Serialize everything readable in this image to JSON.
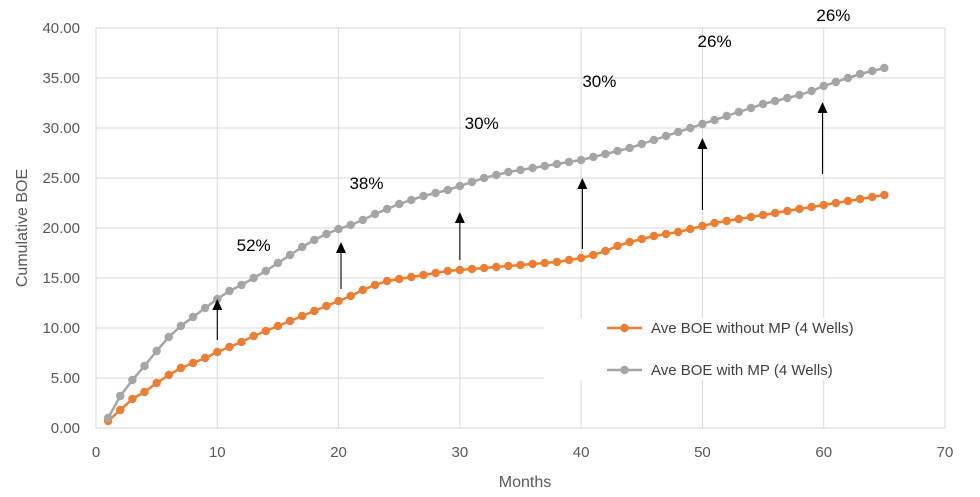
{
  "chart_data": {
    "type": "line",
    "title": "",
    "xlabel": "Months",
    "ylabel": "Cumulative BOE",
    "xlim": [
      0,
      70
    ],
    "ylim": [
      0,
      40
    ],
    "x_ticks": [
      0,
      10,
      20,
      30,
      40,
      50,
      60,
      70
    ],
    "y_ticks": [
      0,
      5,
      10,
      15,
      20,
      25,
      30,
      35,
      40
    ],
    "y_tick_labels": [
      "0.00",
      "5.00",
      "10.00",
      "15.00",
      "20.00",
      "25.00",
      "30.00",
      "35.00",
      "40.00"
    ],
    "grid": "vertical-and-horizontal",
    "legend_position": "bottom-right",
    "series": [
      {
        "name": "Ave BOE without MP (4 Wells)",
        "color": "#ED7D31",
        "x": [
          1,
          2,
          3,
          4,
          5,
          6,
          7,
          8,
          9,
          10,
          11,
          12,
          13,
          14,
          15,
          16,
          17,
          18,
          19,
          20,
          21,
          22,
          23,
          24,
          25,
          26,
          27,
          28,
          29,
          30,
          31,
          32,
          33,
          34,
          35,
          36,
          37,
          38,
          39,
          40,
          41,
          42,
          43,
          44,
          45,
          46,
          47,
          48,
          49,
          50,
          51,
          52,
          53,
          54,
          55,
          56,
          57,
          58,
          59,
          60,
          61,
          62,
          63,
          64,
          65
        ],
        "y": [
          0.7,
          1.8,
          2.9,
          3.6,
          4.5,
          5.3,
          6.0,
          6.5,
          7.0,
          7.6,
          8.1,
          8.6,
          9.2,
          9.7,
          10.2,
          10.7,
          11.2,
          11.7,
          12.2,
          12.7,
          13.2,
          13.8,
          14.3,
          14.7,
          14.9,
          15.1,
          15.3,
          15.5,
          15.7,
          15.8,
          15.9,
          16.0,
          16.1,
          16.2,
          16.3,
          16.4,
          16.5,
          16.6,
          16.8,
          17.0,
          17.3,
          17.7,
          18.2,
          18.6,
          18.9,
          19.2,
          19.4,
          19.6,
          19.9,
          20.2,
          20.5,
          20.7,
          20.9,
          21.1,
          21.3,
          21.5,
          21.7,
          21.9,
          22.1,
          22.3,
          22.5,
          22.7,
          22.9,
          23.1,
          23.3
        ]
      },
      {
        "name": "Ave BOE with MP (4 Wells)",
        "color": "#A5A5A5",
        "x": [
          1,
          2,
          3,
          4,
          5,
          6,
          7,
          8,
          9,
          10,
          11,
          12,
          13,
          14,
          15,
          16,
          17,
          18,
          19,
          20,
          21,
          22,
          23,
          24,
          25,
          26,
          27,
          28,
          29,
          30,
          31,
          32,
          33,
          34,
          35,
          36,
          37,
          38,
          39,
          40,
          41,
          42,
          43,
          44,
          45,
          46,
          47,
          48,
          49,
          50,
          51,
          52,
          53,
          54,
          55,
          56,
          57,
          58,
          59,
          60,
          61,
          62,
          63,
          64,
          65
        ],
        "y": [
          1.0,
          3.2,
          4.8,
          6.2,
          7.7,
          9.1,
          10.2,
          11.1,
          12.0,
          12.9,
          13.7,
          14.3,
          15.0,
          15.7,
          16.5,
          17.3,
          18.1,
          18.8,
          19.4,
          19.9,
          20.3,
          20.8,
          21.4,
          21.9,
          22.4,
          22.8,
          23.2,
          23.5,
          23.8,
          24.2,
          24.6,
          25.0,
          25.3,
          25.6,
          25.8,
          26.0,
          26.2,
          26.4,
          26.6,
          26.8,
          27.1,
          27.4,
          27.7,
          28.0,
          28.4,
          28.8,
          29.2,
          29.6,
          30.0,
          30.4,
          30.8,
          31.2,
          31.6,
          32.0,
          32.4,
          32.7,
          33.0,
          33.3,
          33.7,
          34.2,
          34.6,
          35.0,
          35.4,
          35.7,
          36.0
        ]
      }
    ],
    "annotations": [
      {
        "label": "52%",
        "x": 13,
        "y": 17.7,
        "arrow_x": 10,
        "arrow_from": 8.8,
        "arrow_to": 12.9
      },
      {
        "label": "38%",
        "x": 22.3,
        "y": 23.9,
        "arrow_x": 20.2,
        "arrow_from": 13.9,
        "arrow_to": 18.6
      },
      {
        "label": "30%",
        "x": 31.8,
        "y": 29.9,
        "arrow_x": 30,
        "arrow_from": 16.8,
        "arrow_to": 21.6
      },
      {
        "label": "30%",
        "x": 41.5,
        "y": 34.1,
        "arrow_x": 40.1,
        "arrow_from": 17.9,
        "arrow_to": 25.0
      },
      {
        "label": "26%",
        "x": 51.0,
        "y": 38.1,
        "arrow_x": 50.0,
        "arrow_from": 21.8,
        "arrow_to": 29.0
      },
      {
        "label": "26%",
        "x": 60.8,
        "y": 40.7,
        "arrow_x": 59.9,
        "arrow_from": 25.4,
        "arrow_to": 32.6
      }
    ]
  }
}
